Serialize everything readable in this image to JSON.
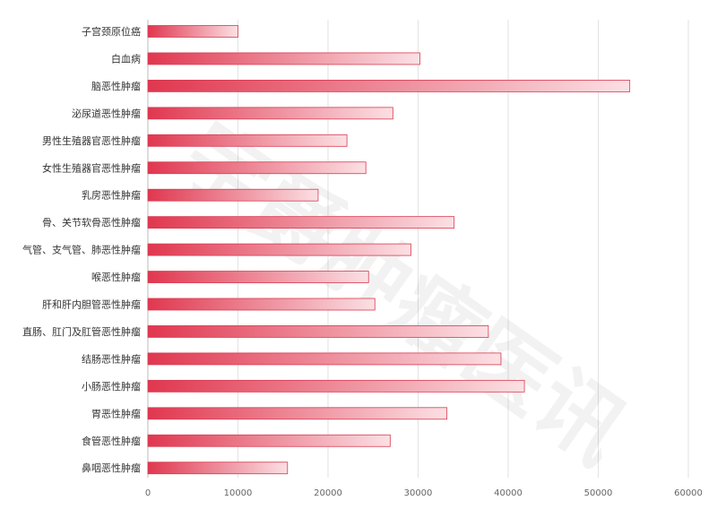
{
  "chart_data": {
    "type": "bar",
    "orientation": "horizontal",
    "title": "",
    "xlabel": "",
    "ylabel": "",
    "categories": [
      "子宫颈原位癌",
      "白血病",
      "脑恶性肿瘤",
      "泌尿道恶性肿瘤",
      "男性生殖器官恶性肿瘤",
      "女性生殖器官恶性肿瘤",
      "乳房恶性肿瘤",
      "骨、关节软骨恶性肿瘤",
      "气管、支气管、肺恶性肿瘤",
      "喉恶性肿瘤",
      "肝和肝内胆管恶性肿瘤",
      "直肠、肛门及肛管恶性肿瘤",
      "结肠恶性肿瘤",
      "小肠恶性肿瘤",
      "胃恶性肿瘤",
      "食管恶性肿瘤",
      "鼻咽恶性肿瘤"
    ],
    "values": [
      10000,
      30200,
      53500,
      27200,
      22100,
      24200,
      18900,
      34000,
      29200,
      24500,
      25200,
      37800,
      39200,
      41800,
      33200,
      26900,
      15500
    ],
    "xlim": [
      0,
      60000
    ],
    "xticks": [
      "0",
      "10000",
      "20000",
      "30000",
      "40000",
      "50000",
      "60000"
    ],
    "grid": "vertical",
    "legend": "none",
    "colors": {
      "bar_start": "#e0374f",
      "bar_end": "#fbe0e4",
      "bar_stroke": "#d93a50",
      "grid": "#e2e2e2",
      "axis": "#bbbbbb"
    }
  },
  "watermark": "宇爵肿瘤医讯"
}
